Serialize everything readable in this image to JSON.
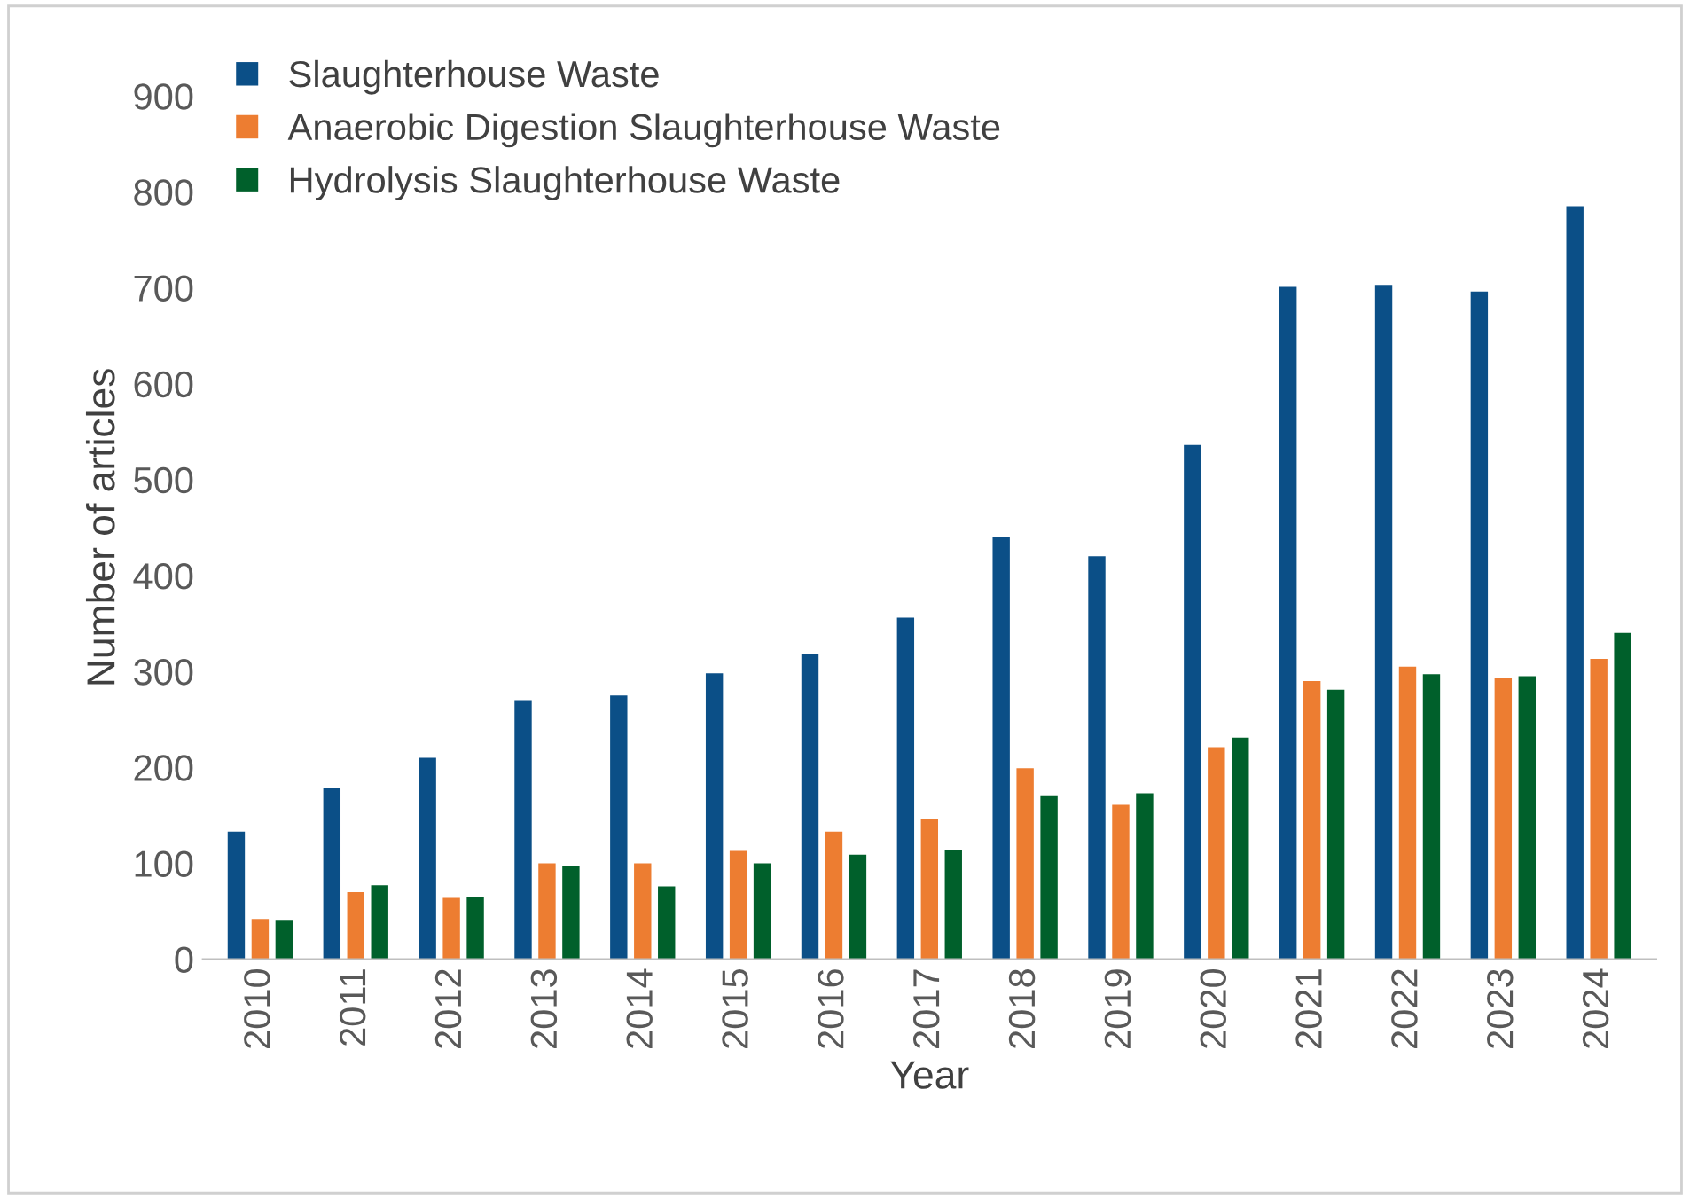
{
  "chart_data": {
    "type": "bar",
    "xlabel": "Year",
    "ylabel": "Number of articles",
    "categories": [
      "2010",
      "2011",
      "2012",
      "2013",
      "2014",
      "2015",
      "2016",
      "2017",
      "2018",
      "2019",
      "2020",
      "2021",
      "2022",
      "2023",
      "2024"
    ],
    "series": [
      {
        "name": "Slaughterhouse Waste",
        "color": "#0b4f87",
        "values": [
          133,
          178,
          210,
          270,
          275,
          298,
          318,
          356,
          440,
          420,
          536,
          701,
          703,
          696,
          785
        ]
      },
      {
        "name": "Anaerobic Digestion Slaughterhouse Waste",
        "color": "#ed7d31",
        "values": [
          42,
          70,
          64,
          100,
          100,
          113,
          133,
          146,
          199,
          161,
          221,
          290,
          305,
          293,
          313
        ]
      },
      {
        "name": "Hydrolysis Slaughterhouse Waste",
        "color": "#00602b",
        "values": [
          41,
          77,
          65,
          97,
          76,
          100,
          109,
          114,
          170,
          173,
          231,
          281,
          297,
          295,
          340
        ]
      }
    ],
    "ylim": [
      0,
      900
    ],
    "yticks": [
      0,
      100,
      200,
      300,
      400,
      500,
      600,
      700,
      800,
      900
    ],
    "grid": false,
    "legend": "top left"
  }
}
